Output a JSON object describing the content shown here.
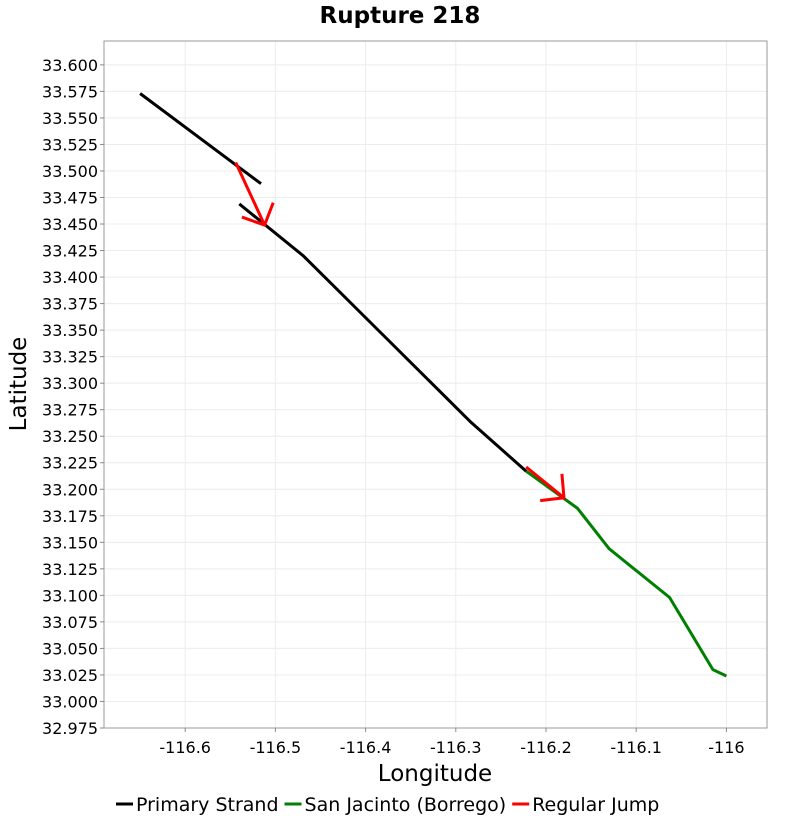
{
  "chart_data": {
    "type": "line",
    "title": "Rupture 218",
    "xlabel": "Longitude",
    "ylabel": "Latitude",
    "xlim": [
      -116.69,
      -115.955
    ],
    "ylim": [
      32.975,
      33.6225
    ],
    "grid": true,
    "legend_position": "bottom",
    "x_ticks": [
      -116.6,
      -116.5,
      -116.4,
      -116.3,
      -116.2,
      -116.1,
      -116.0
    ],
    "x_tick_labels": [
      "-116.6",
      "-116.5",
      "-116.4",
      "-116.3",
      "-116.2",
      "-116.1",
      "-116"
    ],
    "y_ticks": [
      33.6,
      33.575,
      33.55,
      33.525,
      33.5,
      33.475,
      33.45,
      33.425,
      33.4,
      33.375,
      33.35,
      33.325,
      33.3,
      33.275,
      33.25,
      33.225,
      33.2,
      33.175,
      33.15,
      33.125,
      33.1,
      33.075,
      33.05,
      33.025,
      33.0,
      32.975
    ],
    "y_tick_labels": [
      "33.600",
      "33.575",
      "33.550",
      "33.525",
      "33.500",
      "33.475",
      "33.450",
      "33.425",
      "33.400",
      "33.375",
      "33.350",
      "33.325",
      "33.300",
      "33.275",
      "33.250",
      "33.225",
      "33.200",
      "33.175",
      "33.150",
      "33.125",
      "33.100",
      "33.075",
      "33.050",
      "33.025",
      "33.000",
      "32.975"
    ],
    "series": [
      {
        "name": "Primary Strand",
        "color": "#000000",
        "segments": [
          [
            [
              -116.65,
              33.573
            ],
            [
              -116.516,
              33.488
            ]
          ],
          [
            [
              -116.54,
              33.469
            ],
            [
              -116.469,
              33.42
            ],
            [
              -116.283,
              33.263
            ],
            [
              -116.222,
              33.217
            ]
          ]
        ]
      },
      {
        "name": "San Jacinto (Borrego)",
        "color": "#008000",
        "segments": [
          [
            [
              -116.222,
              33.217
            ],
            [
              -116.165,
              33.182
            ],
            [
              -116.13,
              33.144
            ],
            [
              -116.063,
              33.098
            ],
            [
              -116.015,
              33.03
            ],
            [
              -116.0,
              33.024
            ]
          ]
        ]
      },
      {
        "name": "Regular Jump",
        "color": "#ff0000",
        "segments": [
          [
            [
              -116.544,
              33.508
            ],
            [
              -116.512,
              33.449
            ]
          ],
          [
            [
              -116.222,
              33.221
            ],
            [
              -116.18,
              33.192
            ]
          ]
        ]
      }
    ]
  }
}
